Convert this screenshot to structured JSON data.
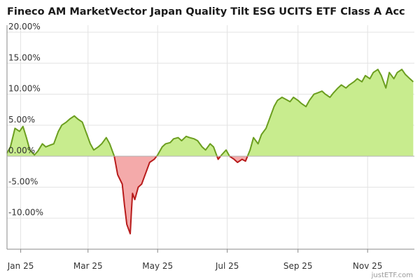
{
  "chart_data": {
    "type": "area",
    "title": "Fineco AM MarketVector Japan Quality Tilt ESG UCITS ETF Class A Acc",
    "xlabel": "",
    "ylabel": "",
    "x_tick_labels": [
      "Jan 25",
      "Mar 25",
      "May 25",
      "Jul 25",
      "Sep 25",
      "Nov 25"
    ],
    "x_tick_dates": [
      "2025-01-01",
      "2025-03-01",
      "2025-05-01",
      "2025-07-01",
      "2025-09-01",
      "2025-11-01"
    ],
    "x_range": [
      "2024-12-20",
      "2025-12-12"
    ],
    "y_tick_labels": [
      "20.00%",
      "15.00%",
      "10.00%",
      "5.00%",
      "0.00%",
      "-5.00%",
      "-10.00%"
    ],
    "y_tick_values": [
      20,
      15,
      10,
      5,
      0,
      -5,
      -10
    ],
    "ylim": [
      -15,
      20
    ],
    "grid": true,
    "legend": "none",
    "watermark": "justETF.com",
    "colors": {
      "positive_line": "#6b9e1f",
      "positive_fill": "#c8ec8e",
      "negative_line": "#b81c1c",
      "negative_fill": "#f4aaaa",
      "grid": "#e3e3e3",
      "axis": "#888888"
    },
    "series": [
      {
        "x": [
          "2024-12-20",
          "2024-12-23",
          "2024-12-27",
          "2024-12-31",
          "2025-01-03",
          "2025-01-06",
          "2025-01-09",
          "2025-01-13",
          "2025-01-16",
          "2025-01-20",
          "2025-01-23",
          "2025-01-27",
          "2025-01-30",
          "2025-02-03",
          "2025-02-06",
          "2025-02-10",
          "2025-02-13",
          "2025-02-17",
          "2025-02-20",
          "2025-02-24",
          "2025-02-27",
          "2025-03-03",
          "2025-03-06",
          "2025-03-10",
          "2025-03-13",
          "2025-03-17",
          "2025-03-20",
          "2025-03-24",
          "2025-03-27",
          "2025-03-31",
          "2025-04-02",
          "2025-04-04",
          "2025-04-07",
          "2025-04-08",
          "2025-04-09",
          "2025-04-11",
          "2025-04-14",
          "2025-04-17",
          "2025-04-21",
          "2025-04-24",
          "2025-04-28",
          "2025-05-01",
          "2025-05-05",
          "2025-05-08",
          "2025-05-12",
          "2025-05-15",
          "2025-05-19",
          "2025-05-22",
          "2025-05-26",
          "2025-05-29",
          "2025-06-02",
          "2025-06-05",
          "2025-06-09",
          "2025-06-12",
          "2025-06-16",
          "2025-06-19",
          "2025-06-23",
          "2025-06-26",
          "2025-06-30",
          "2025-07-03",
          "2025-07-07",
          "2025-07-10",
          "2025-07-14",
          "2025-07-17",
          "2025-07-21",
          "2025-07-24",
          "2025-07-28",
          "2025-07-31",
          "2025-08-04",
          "2025-08-07",
          "2025-08-11",
          "2025-08-14",
          "2025-08-18",
          "2025-08-21",
          "2025-08-25",
          "2025-08-28",
          "2025-09-01",
          "2025-09-04",
          "2025-09-08",
          "2025-09-11",
          "2025-09-15",
          "2025-09-18",
          "2025-09-22",
          "2025-09-25",
          "2025-09-29",
          "2025-10-02",
          "2025-10-06",
          "2025-10-09",
          "2025-10-13",
          "2025-10-16",
          "2025-10-20",
          "2025-10-23",
          "2025-10-27",
          "2025-10-30",
          "2025-11-03",
          "2025-11-06",
          "2025-11-10",
          "2025-11-13",
          "2025-11-17",
          "2025-11-20",
          "2025-11-24",
          "2025-11-27",
          "2025-12-01",
          "2025-12-04",
          "2025-12-08",
          "2025-12-11"
        ],
        "values": [
          0.5,
          1.5,
          4.5,
          4.0,
          4.8,
          3.0,
          1.0,
          0.2,
          0.8,
          2.0,
          1.5,
          1.8,
          2.0,
          4.0,
          5.0,
          5.5,
          6.0,
          6.5,
          6.0,
          5.5,
          4.0,
          2.0,
          1.0,
          1.5,
          2.0,
          3.0,
          2.0,
          0.0,
          -3.0,
          -4.5,
          -8.0,
          -11.0,
          -12.5,
          -9.0,
          -6.0,
          -7.0,
          -5.0,
          -4.5,
          -2.5,
          -1.0,
          -0.5,
          0.2,
          1.5,
          2.0,
          2.2,
          2.8,
          3.0,
          2.5,
          3.2,
          3.0,
          2.8,
          2.5,
          1.5,
          1.0,
          2.0,
          1.5,
          -0.5,
          0.2,
          1.0,
          0.0,
          -0.5,
          -1.0,
          -0.5,
          -0.8,
          1.0,
          3.0,
          2.0,
          3.5,
          4.5,
          6.0,
          8.0,
          9.0,
          9.5,
          9.2,
          8.8,
          9.5,
          9.0,
          8.5,
          8.0,
          9.0,
          10.0,
          10.2,
          10.5,
          10.0,
          9.5,
          10.2,
          11.0,
          11.5,
          11.0,
          11.5,
          12.0,
          12.5,
          12.0,
          13.0,
          12.5,
          13.5,
          14.0,
          13.0,
          11.0,
          13.5,
          12.5,
          13.5,
          14.0,
          13.2,
          12.5,
          12.0
        ]
      }
    ]
  }
}
